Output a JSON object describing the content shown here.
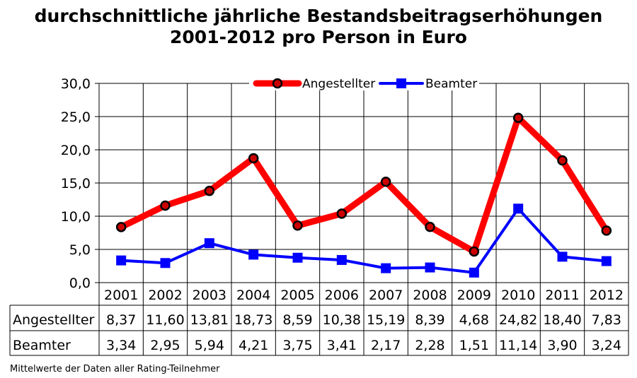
{
  "chart_data": {
    "type": "line",
    "title": "durchschnittliche jährliche Bestandsbeitragserhöhungen",
    "subtitle": "2001-2012 pro Person in Euro",
    "categories": [
      "2001",
      "2002",
      "2003",
      "2004",
      "2005",
      "2006",
      "2007",
      "2008",
      "2009",
      "2010",
      "2011",
      "2012"
    ],
    "ylim": [
      0,
      30
    ],
    "yticks": [
      "0,0",
      "5,0",
      "10,0",
      "15,0",
      "20,0",
      "25,0",
      "30,0"
    ],
    "grid": true,
    "legend_position": "top-right",
    "series": [
      {
        "name": "Angestellter",
        "color": "#ff0000",
        "marker": "circle",
        "values": [
          8.37,
          11.6,
          13.81,
          18.73,
          8.59,
          10.38,
          15.19,
          8.39,
          4.68,
          24.82,
          18.4,
          7.83
        ],
        "labels": [
          "8,37",
          "11,60",
          "13,81",
          "18,73",
          "8,59",
          "10,38",
          "15,19",
          "8,39",
          "4,68",
          "24,82",
          "18,40",
          "7,83"
        ]
      },
      {
        "name": "Beamter",
        "color": "#0000ff",
        "marker": "square",
        "values": [
          3.34,
          2.95,
          5.94,
          4.21,
          3.75,
          3.41,
          2.17,
          2.28,
          1.51,
          11.14,
          3.9,
          3.24
        ],
        "labels": [
          "3,34",
          "2,95",
          "5,94",
          "4,21",
          "3,75",
          "3,41",
          "2,17",
          "2,28",
          "1,51",
          "11,14",
          "3,90",
          "3,24"
        ]
      }
    ]
  },
  "footnote": "Mittelwerte der Daten aller Rating-Teilnehmer"
}
